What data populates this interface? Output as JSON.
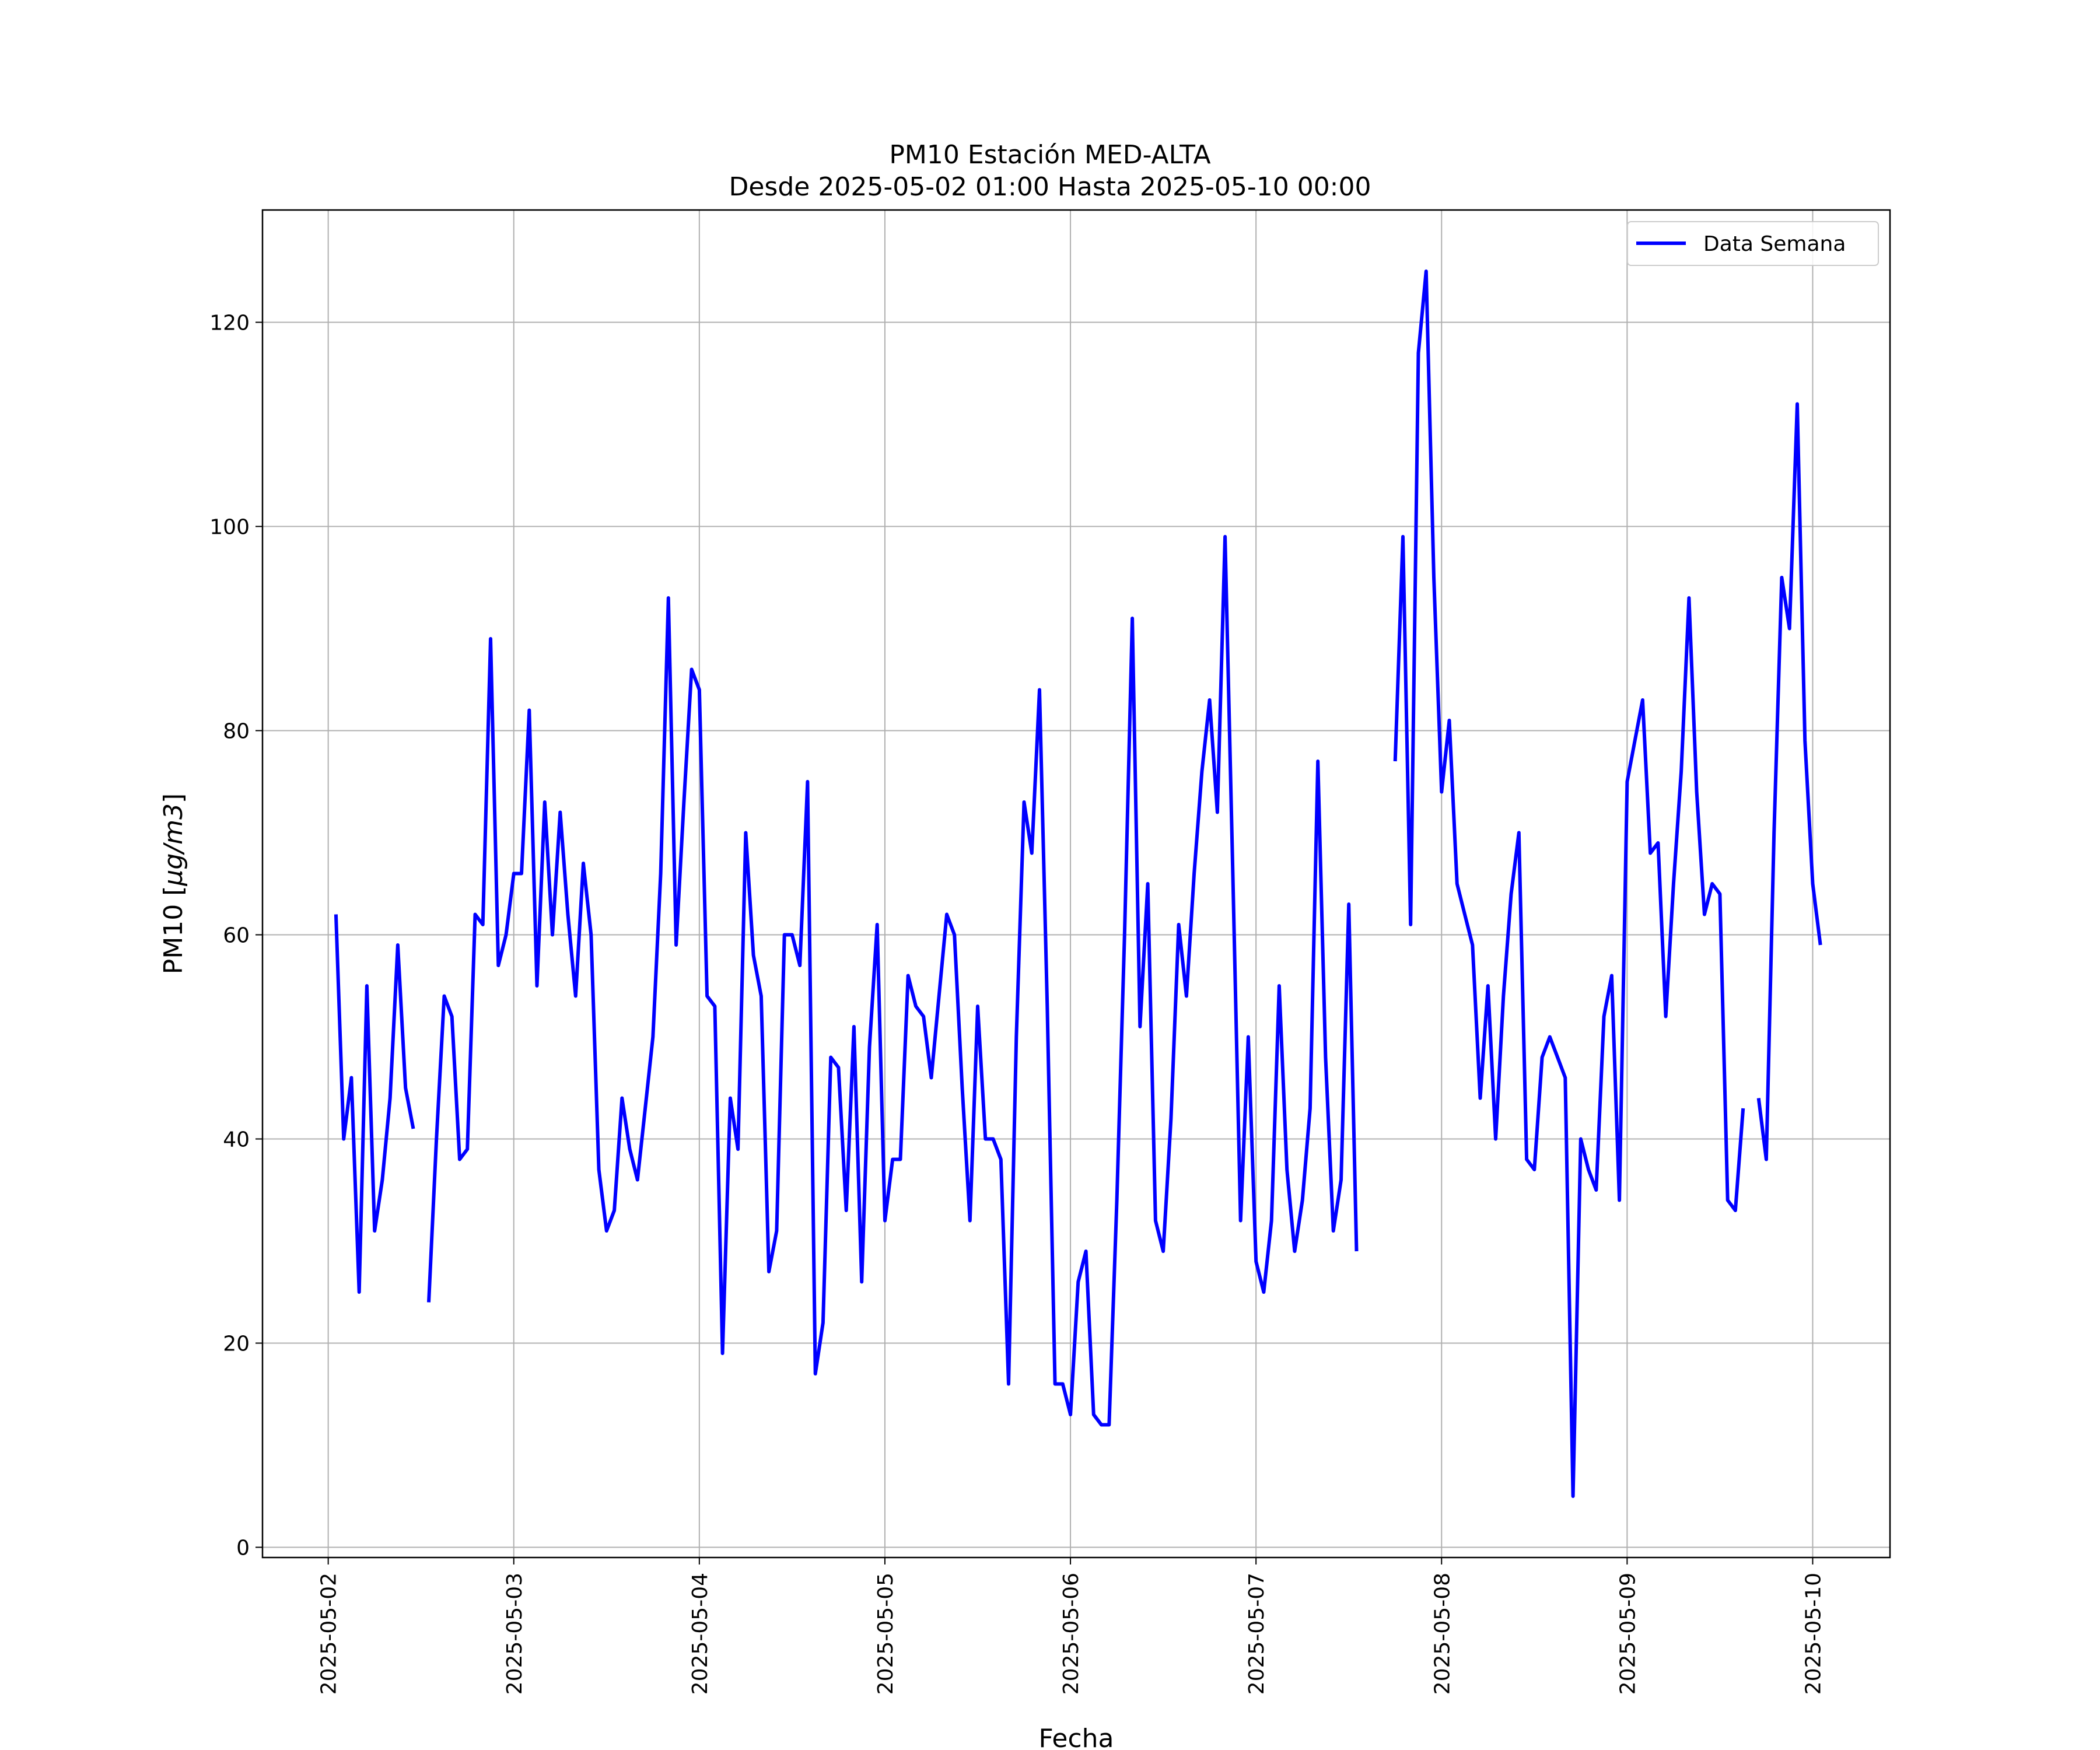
{
  "chart_data": {
    "type": "line",
    "title": "PM10 Estación MED-ALTA",
    "subtitle": "Desde 2025-05-02 01:00 Hasta 2025-05-10 00:00",
    "xlabel": "Fecha",
    "ylabel_main": "PM10 [",
    "ylabel_unit": "µg/m3",
    "ylabel_close": "]",
    "xlim": [
      "2025-05-01 15:30",
      "2025-05-10 10:00"
    ],
    "ylim": [
      -1,
      131
    ],
    "yticks": [
      0,
      20,
      40,
      60,
      80,
      100,
      120
    ],
    "xticks": [
      "2025-05-02",
      "2025-05-03",
      "2025-05-04",
      "2025-05-05",
      "2025-05-06",
      "2025-05-07",
      "2025-05-08",
      "2025-05-09",
      "2025-05-10"
    ],
    "grid": true,
    "legend_position": "top-right",
    "series": [
      {
        "name": "Data Semana",
        "color": "#0000ff",
        "start": "2025-05-02 01:00",
        "step_hours": 1,
        "values": [
          62,
          40,
          46,
          25,
          55,
          31,
          36,
          44,
          59,
          45,
          41,
          null,
          24,
          40,
          54,
          52,
          38,
          39,
          62,
          61,
          89,
          57,
          60,
          66,
          66,
          82,
          55,
          73,
          60,
          72,
          62,
          54,
          67,
          60,
          37,
          31,
          33,
          44,
          39,
          36,
          43,
          50,
          66,
          93,
          59,
          73,
          86,
          84,
          54,
          53,
          19,
          44,
          39,
          70,
          58,
          54,
          27,
          31,
          60,
          60,
          57,
          75,
          17,
          22,
          48,
          47,
          33,
          51,
          26,
          49,
          61,
          32,
          38,
          38,
          56,
          53,
          52,
          46,
          54,
          62,
          60,
          45,
          32,
          53,
          40,
          40,
          38,
          16,
          50,
          73,
          68,
          84,
          53,
          16,
          16,
          13,
          26,
          29,
          13,
          12,
          12,
          34,
          60,
          91,
          51,
          65,
          32,
          29,
          42,
          61,
          54,
          66,
          76,
          83,
          72,
          99,
          66,
          32,
          50,
          28,
          25,
          32,
          55,
          37,
          29,
          34,
          43,
          77,
          48,
          31,
          36,
          63,
          29,
          null,
          null,
          null,
          null,
          77,
          99,
          61,
          117,
          125,
          95,
          74,
          81,
          65,
          62,
          59,
          44,
          55,
          40,
          54,
          64,
          70,
          38,
          37,
          48,
          50,
          48,
          46,
          5,
          40,
          37,
          35,
          52,
          56,
          34,
          75,
          79,
          83,
          68,
          69,
          52,
          65,
          76,
          93,
          74,
          62,
          65,
          64,
          34,
          33,
          43,
          null,
          44,
          38,
          70,
          95,
          90,
          112,
          79,
          65,
          59
        ]
      }
    ]
  }
}
